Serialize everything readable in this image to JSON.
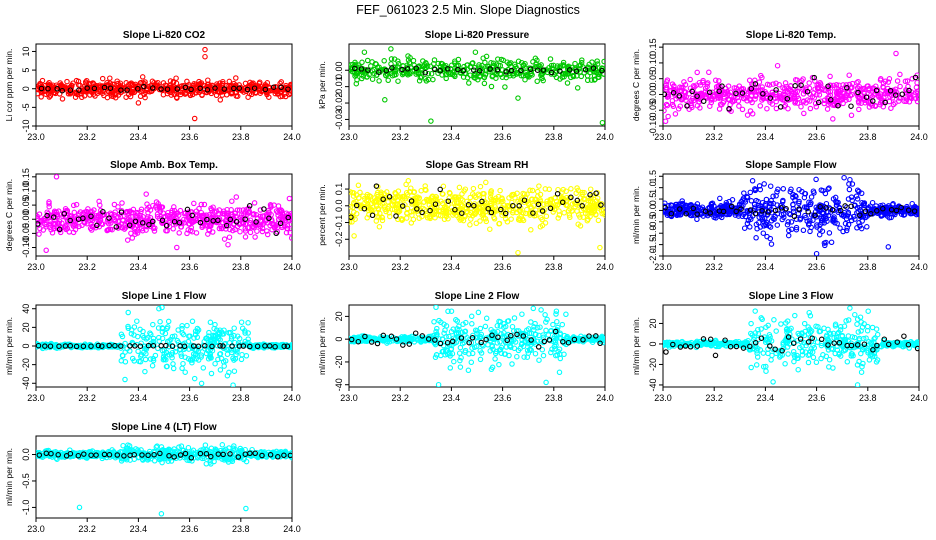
{
  "page": {
    "title": "FEF_061023  2.5 Min. Slope Diagnostics"
  },
  "colors": {
    "co2": "#ff0000",
    "pressure": "#00c800",
    "temperature": "#ff00ff",
    "rh": "#ffff00",
    "sample_flow": "#0000ff",
    "line_flow": "#00ffff",
    "reference": "#000000"
  },
  "chart_data": [
    {
      "type": "scatter",
      "id": "co2",
      "title": "Slope Li-820 CO2",
      "xlabel": "",
      "ylabel": "Li cor ppm per min.",
      "xlim": [
        23.0,
        24.0
      ],
      "ylim": [
        -10,
        12
      ],
      "xticks": [
        23.0,
        23.2,
        23.4,
        23.6,
        23.8,
        24.0
      ],
      "xtick_labels": [
        "23.0",
        "23.2",
        "23.4",
        "23.6",
        "23.8",
        "24.0"
      ],
      "yticks": [
        -10,
        -5,
        0,
        5,
        10
      ],
      "ytick_labels": [
        "-10",
        "-5",
        "0",
        "5",
        "10"
      ],
      "series": [
        {
          "color_key": "co2",
          "count": 560,
          "spread": 1.1,
          "outliers": [
            [
              23.66,
              10.5
            ],
            [
              23.66,
              8.6
            ],
            [
              23.62,
              -8.0
            ],
            [
              23.4,
              -3.8
            ],
            [
              23.72,
              -3.0
            ]
          ]
        },
        {
          "color_key": "reference",
          "count": 32,
          "spread": 0.25
        }
      ]
    },
    {
      "type": "scatter",
      "id": "pressure",
      "title": "Slope Li-820 Pressure",
      "xlabel": "",
      "ylabel": "kPa per min.",
      "xlim": [
        23.0,
        24.0
      ],
      "ylim": [
        -0.034,
        0.016
      ],
      "xticks": [
        23.0,
        23.2,
        23.4,
        23.6,
        23.8,
        24.0
      ],
      "xtick_labels": [
        "23.0",
        "23.2",
        "23.4",
        "23.6",
        "23.8",
        "24.0"
      ],
      "yticks": [
        -0.03,
        -0.02,
        -0.01,
        0.0
      ],
      "ytick_labels": [
        "-0.03",
        "-0.02",
        "-0.01",
        "0.00"
      ],
      "series": [
        {
          "color_key": "pressure",
          "count": 420,
          "spread": 0.0035,
          "outliers": [
            [
              23.32,
              -0.031
            ],
            [
              23.99,
              -0.032
            ],
            [
              23.06,
              0.011
            ],
            [
              23.14,
              -0.018
            ],
            [
              23.66,
              -0.017
            ]
          ]
        },
        {
          "color_key": "reference",
          "count": 32,
          "spread": 0.0006
        }
      ]
    },
    {
      "type": "scatter",
      "id": "temp",
      "title": "Slope Li-820 Temp.",
      "xlabel": "",
      "ylabel": "degrees C per min.",
      "xlim": [
        23.0,
        24.0
      ],
      "ylim": [
        -0.1,
        0.16
      ],
      "xticks": [
        23.0,
        23.2,
        23.4,
        23.6,
        23.8,
        24.0
      ],
      "xtick_labels": [
        "23.0",
        "23.2",
        "23.4",
        "23.6",
        "23.8",
        "24.0"
      ],
      "yticks": [
        -0.1,
        -0.05,
        0.0,
        0.05,
        0.1,
        0.15
      ],
      "ytick_labels": [
        "-0.10",
        "-0.05",
        "0.00",
        "0.05",
        "0.10",
        "0.15"
      ],
      "series": [
        {
          "color_key": "temperature",
          "count": 560,
          "spread": 0.024,
          "outliers": [
            [
              23.01,
              -0.085
            ],
            [
              23.02,
              -0.07
            ],
            [
              23.91,
              0.13
            ],
            [
              23.55,
              -0.06
            ]
          ]
        },
        {
          "color_key": "reference",
          "count": 40,
          "spread": 0.02
        }
      ]
    },
    {
      "type": "scatter",
      "id": "ambtemp",
      "title": "Slope Amb. Box Temp.",
      "xlabel": "",
      "ylabel": "degrees C per min.",
      "xlim": [
        23.0,
        24.0
      ],
      "ylim": [
        -0.13,
        0.16
      ],
      "xticks": [
        23.0,
        23.2,
        23.4,
        23.6,
        23.8,
        24.0
      ],
      "xtick_labels": [
        "23.0",
        "23.2",
        "23.4",
        "23.6",
        "23.8",
        "24.0"
      ],
      "yticks": [
        -0.1,
        -0.05,
        0.0,
        0.05,
        0.1,
        0.15
      ],
      "ytick_labels": [
        "-0.10",
        "-0.05",
        "0.00",
        "0.05",
        "0.10",
        "0.15"
      ],
      "series": [
        {
          "color_key": "temperature",
          "count": 620,
          "spread": 0.025,
          "outliers": [
            [
              23.08,
              0.15
            ],
            [
              23.04,
              -0.11
            ],
            [
              23.55,
              -0.1
            ],
            [
              23.75,
              -0.09
            ]
          ]
        },
        {
          "color_key": "reference",
          "count": 40,
          "spread": 0.022
        }
      ]
    },
    {
      "type": "scatter",
      "id": "rh",
      "title": "Slope Gas Stream RH",
      "xlabel": "",
      "ylabel": "percent per min.",
      "xlim": [
        23.0,
        24.0
      ],
      "ylim": [
        -0.3,
        0.19
      ],
      "xticks": [
        23.0,
        23.2,
        23.4,
        23.6,
        23.8,
        24.0
      ],
      "xtick_labels": [
        "23.0",
        "23.2",
        "23.4",
        "23.6",
        "23.8",
        "24.0"
      ],
      "yticks": [
        -0.2,
        -0.1,
        0.0,
        0.1
      ],
      "ytick_labels": [
        "-0.2",
        "-0.1",
        "0.0",
        "0.1"
      ],
      "series": [
        {
          "color_key": "rh",
          "count": 620,
          "spread": 0.05,
          "outliers": [
            [
              23.66,
              -0.28
            ],
            [
              23.98,
              -0.25
            ],
            [
              23.02,
              -0.18
            ],
            [
              23.55,
              -0.14
            ]
          ]
        },
        {
          "color_key": "reference",
          "count": 40,
          "spread": 0.04
        }
      ]
    },
    {
      "type": "scatter",
      "id": "sampleflow",
      "title": "Slope Sample Flow",
      "xlabel": "",
      "ylabel": "ml/min per min.",
      "xlim": [
        23.0,
        24.0
      ],
      "ylim": [
        -2.0,
        1.6
      ],
      "xticks": [
        23.0,
        23.2,
        23.4,
        23.6,
        23.8,
        24.0
      ],
      "xtick_labels": [
        "23.0",
        "23.2",
        "23.4",
        "23.6",
        "23.8",
        "24.0"
      ],
      "yticks": [
        -2.0,
        -1.5,
        -1.0,
        -0.5,
        0.0,
        0.5,
        1.0,
        1.5
      ],
      "ytick_labels": [
        "-2.0",
        "-1.5",
        "-1.0",
        "-0.5",
        "0.0",
        "0.5",
        "1.0",
        "1.5"
      ],
      "series": [
        {
          "color_key": "sample_flow",
          "count": 620,
          "spread": 0.15,
          "burst": [
            23.3,
            23.8
          ],
          "burst_spread": 0.55,
          "outliers": [
            [
              23.6,
              -1.9
            ],
            [
              23.35,
              1.3
            ],
            [
              23.73,
              1.35
            ],
            [
              23.88,
              -1.6
            ]
          ]
        },
        {
          "color_key": "reference",
          "count": 40,
          "spread": 0.12
        }
      ]
    },
    {
      "type": "scatter",
      "id": "line1",
      "title": "Slope Line 1 Flow",
      "xlabel": "",
      "ylabel": "ml/min per min.",
      "xlim": [
        23.0,
        24.0
      ],
      "ylim": [
        -44,
        44
      ],
      "xticks": [
        23.0,
        23.2,
        23.4,
        23.6,
        23.8,
        24.0
      ],
      "xtick_labels": [
        "23.0",
        "23.2",
        "23.4",
        "23.6",
        "23.8",
        "24.0"
      ],
      "yticks": [
        -40,
        -20,
        0,
        20,
        40
      ],
      "ytick_labels": [
        "-40",
        "-20",
        "0",
        "20",
        "40"
      ],
      "series": [
        {
          "color_key": "line_flow",
          "count": 560,
          "spread": 1.0,
          "burst": [
            23.33,
            23.83
          ],
          "burst_spread": 14,
          "outliers": [
            [
              23.48,
              40
            ],
            [
              23.77,
              -42
            ],
            [
              23.36,
              36
            ],
            [
              23.62,
              -35
            ]
          ]
        },
        {
          "color_key": "reference",
          "count": 40,
          "spread": 0.3
        }
      ]
    },
    {
      "type": "scatter",
      "id": "line2",
      "title": "Slope Line 2 Flow",
      "xlabel": "",
      "ylabel": "ml/min per min.",
      "xlim": [
        23.0,
        24.0
      ],
      "ylim": [
        -42,
        30
      ],
      "xticks": [
        23.0,
        23.2,
        23.4,
        23.6,
        23.8,
        24.0
      ],
      "xtick_labels": [
        "23.0",
        "23.2",
        "23.4",
        "23.6",
        "23.8",
        "24.0"
      ],
      "yticks": [
        -40,
        -20,
        0,
        20
      ],
      "ytick_labels": [
        "-40",
        "-20",
        "0",
        "20"
      ],
      "series": [
        {
          "color_key": "line_flow",
          "count": 560,
          "spread": 1.2,
          "burst": [
            23.33,
            23.85
          ],
          "burst_spread": 11,
          "outliers": [
            [
              23.35,
              -40
            ],
            [
              23.34,
              28
            ],
            [
              23.72,
              27
            ],
            [
              23.77,
              -38
            ]
          ]
        },
        {
          "color_key": "reference",
          "count": 40,
          "spread": 3.5
        }
      ]
    },
    {
      "type": "scatter",
      "id": "line3",
      "title": "Slope Line 3 Flow",
      "xlabel": "",
      "ylabel": "ml/min per min.",
      "xlim": [
        23.0,
        24.0
      ],
      "ylim": [
        -42,
        38
      ],
      "xticks": [
        23.0,
        23.2,
        23.4,
        23.6,
        23.8,
        24.0
      ],
      "xtick_labels": [
        "23.0",
        "23.2",
        "23.4",
        "23.6",
        "23.8",
        "24.0"
      ],
      "yticks": [
        -40,
        -20,
        0,
        20
      ],
      "ytick_labels": [
        "-40",
        "-20",
        "0",
        "20"
      ],
      "series": [
        {
          "color_key": "line_flow",
          "count": 560,
          "spread": 1.2,
          "burst": [
            23.33,
            23.85
          ],
          "burst_spread": 12,
          "outliers": [
            [
              23.73,
              35
            ],
            [
              23.43,
              -37
            ],
            [
              23.76,
              -40
            ],
            [
              23.36,
              32
            ]
          ]
        },
        {
          "color_key": "reference",
          "count": 40,
          "spread": 4
        }
      ]
    },
    {
      "type": "scatter",
      "id": "line4",
      "title": "Slope Line 4 (LT) Flow",
      "xlabel": "",
      "ylabel": "ml/min per min.",
      "xlim": [
        23.0,
        24.0
      ],
      "ylim": [
        -1.2,
        0.35
      ],
      "xticks": [
        23.0,
        23.2,
        23.4,
        23.6,
        23.8,
        24.0
      ],
      "xtick_labels": [
        "23.0",
        "23.2",
        "23.4",
        "23.6",
        "23.8",
        "24.0"
      ],
      "yticks": [
        -1.0,
        -0.5,
        0.0
      ],
      "ytick_labels": [
        "-1.0",
        "-0.5",
        "0.0"
      ],
      "series": [
        {
          "color_key": "line_flow",
          "count": 620,
          "spread": 0.03,
          "burst": [
            23.33,
            23.83
          ],
          "burst_spread": 0.07,
          "outliers": [
            [
              23.17,
              -1.0
            ],
            [
              23.82,
              -1.02
            ],
            [
              23.49,
              -1.12
            ]
          ]
        },
        {
          "color_key": "reference",
          "count": 40,
          "spread": 0.02
        }
      ]
    }
  ]
}
